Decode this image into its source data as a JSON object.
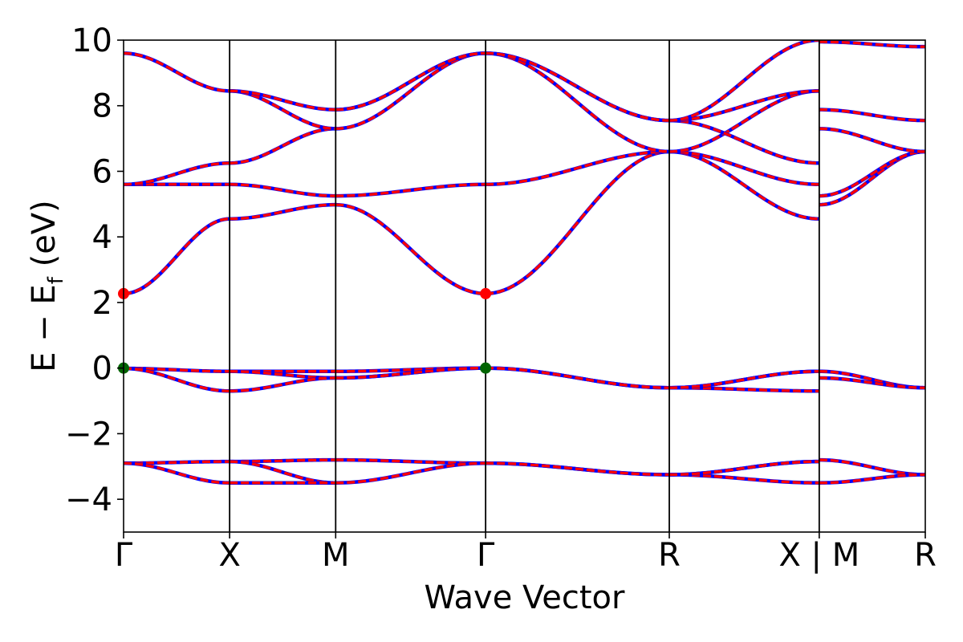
{
  "chart_data": {
    "type": "line",
    "title": "",
    "xlabel": "Wave Vector",
    "ylabel": "E − E_f (eV)",
    "ylabel_parts": {
      "main": "E − E",
      "sub": "f",
      "unit": " (eV)"
    },
    "ylim": [
      -5,
      10
    ],
    "yticks": [
      -4,
      -2,
      0,
      2,
      4,
      6,
      8,
      10
    ],
    "ytick_labels": [
      "−4",
      "−2",
      "0",
      "2",
      "4",
      "6",
      "8",
      "10"
    ],
    "kpath": [
      {
        "label": "Γ",
        "x": 0.0
      },
      {
        "label": "X",
        "x": 0.5
      },
      {
        "label": "M",
        "x": 1.0
      },
      {
        "label": "Γ",
        "x": 1.707
      },
      {
        "label": "R",
        "x": 2.573
      },
      {
        "label": "X | M",
        "x": 3.28
      },
      {
        "label": "R",
        "x": 3.78
      }
    ],
    "xlim": [
      0.0,
      3.78
    ],
    "path_break_x": 3.28,
    "grid": false,
    "legend": "none",
    "colors": {
      "band_primary": "#ff0000",
      "band_secondary": "#0000ff",
      "vbm_marker": "#006400",
      "cbm_marker": "#ff0000",
      "divider": "#000000"
    },
    "markers": [
      {
        "name": "CBM",
        "x": 0.0,
        "y": 2.27,
        "color": "#ff0000"
      },
      {
        "name": "CBM",
        "x": 1.707,
        "y": 2.27,
        "color": "#ff0000"
      },
      {
        "name": "VBM",
        "x": 0.0,
        "y": 0.0,
        "color": "#006400"
      },
      {
        "name": "VBM",
        "x": 1.707,
        "y": 0.0,
        "color": "#006400"
      }
    ],
    "bands": [
      {
        "segment": "Γ-X",
        "x0": 0.0,
        "x1": 0.5,
        "lines": [
          [
            -2.9,
            -2.85
          ],
          [
            -2.9,
            -3.5
          ],
          [
            -0.01,
            -0.1
          ],
          [
            -0.01,
            -0.7
          ],
          [
            2.27,
            4.55
          ],
          [
            5.6,
            5.6
          ],
          [
            5.6,
            6.25
          ],
          [
            9.6,
            8.45
          ]
        ]
      },
      {
        "segment": "X-M",
        "x0": 0.5,
        "x1": 1.0,
        "lines": [
          [
            -2.85,
            -2.8
          ],
          [
            -2.85,
            -3.5
          ],
          [
            -3.5,
            -3.5
          ],
          [
            -0.1,
            -0.1
          ],
          [
            -0.1,
            -0.3
          ],
          [
            -0.7,
            -0.3
          ],
          [
            4.55,
            4.98
          ],
          [
            5.6,
            5.25
          ],
          [
            6.25,
            7.3
          ],
          [
            8.45,
            7.3
          ],
          [
            8.45,
            7.88
          ]
        ]
      },
      {
        "segment": "M-Γ",
        "x0": 1.0,
        "x1": 1.707,
        "lines": [
          [
            -2.8,
            -2.9
          ],
          [
            -3.5,
            -2.9
          ],
          [
            -0.1,
            0.0
          ],
          [
            -0.3,
            0.0
          ],
          [
            -0.3,
            0.0
          ],
          [
            4.98,
            2.27
          ],
          [
            5.25,
            5.6
          ],
          [
            7.3,
            9.6
          ],
          [
            7.88,
            9.6
          ],
          [
            7.88,
            9.6
          ]
        ]
      },
      {
        "segment": "Γ-R",
        "x0": 1.707,
        "x1": 2.573,
        "lines": [
          [
            -2.9,
            -3.25
          ],
          [
            -2.9,
            -3.25
          ],
          [
            0.0,
            -0.6
          ],
          [
            0.0,
            -0.6
          ],
          [
            2.27,
            6.6
          ],
          [
            5.6,
            6.6
          ],
          [
            9.6,
            7.55
          ],
          [
            9.6,
            6.6
          ],
          [
            9.6,
            7.55
          ]
        ]
      },
      {
        "segment": "R-X",
        "x0": 2.573,
        "x1": 3.28,
        "lines": [
          [
            -3.25,
            -2.85
          ],
          [
            -3.25,
            -3.5
          ],
          [
            -3.25,
            -2.85
          ],
          [
            -0.6,
            -0.1
          ],
          [
            -0.6,
            -0.7
          ],
          [
            -0.6,
            -0.1
          ],
          [
            6.6,
            4.55
          ],
          [
            6.6,
            5.6
          ],
          [
            6.6,
            8.45
          ],
          [
            7.55,
            6.25
          ],
          [
            7.55,
            8.45
          ],
          [
            7.55,
            10.0
          ]
        ]
      },
      {
        "segment": "M-R",
        "x0": 3.28,
        "x1": 3.78,
        "lines": [
          [
            -2.8,
            -3.25
          ],
          [
            -3.5,
            -3.25
          ],
          [
            -0.1,
            -0.6
          ],
          [
            -0.3,
            -0.6
          ],
          [
            4.98,
            6.6
          ],
          [
            5.25,
            6.6
          ],
          [
            7.3,
            6.6
          ],
          [
            7.88,
            7.55
          ],
          [
            9.95,
            9.8
          ]
        ]
      }
    ]
  }
}
